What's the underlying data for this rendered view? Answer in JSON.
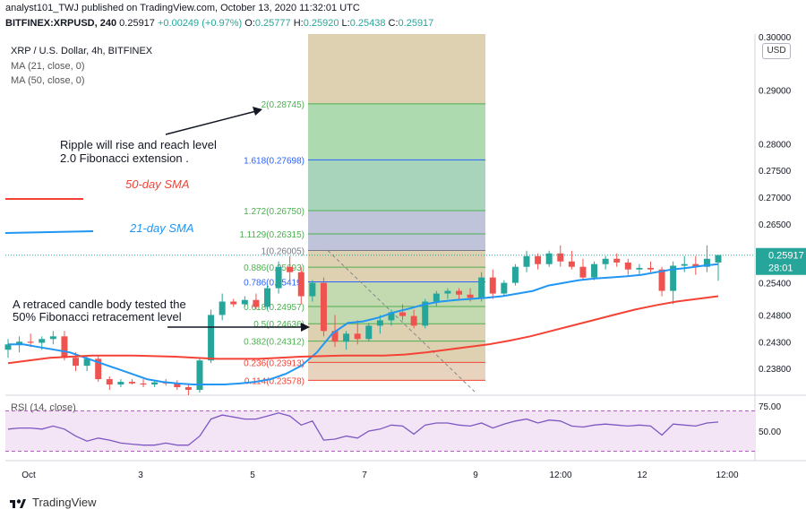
{
  "header": {
    "line1": "analyst101_TWJ published on TradingView.com, October 13, 2020 11:32:01 UTC",
    "symbol": "BITFINEX:XRPUSD, 240",
    "last": "0.25917",
    "change": "+0.00249 (+0.97%)",
    "o_label": "O:",
    "o": "0.25777",
    "h_label": "H:",
    "h": "0.25920",
    "l_label": "L:",
    "l": "0.25438",
    "c_label": "C:",
    "c": "0.25917"
  },
  "legend": {
    "title": "XRP / U.S. Dollar, 4h, BITFINEX",
    "ma21": "MA (21, close, 0)",
    "ma50": "MA (50, close, 0)"
  },
  "annotations": {
    "note1_line1": "Ripple will rise and reach level",
    "note1_line2": "2.0 Fibonacci extension .",
    "note2_line1": "A retraced candle body tested the",
    "note2_line2": "50% Fibonacci retracement level",
    "sma50": "50-day SMA",
    "sma21": "21-day SMA"
  },
  "price_scale": {
    "currency": "USD",
    "last_price": "0.25917",
    "countdown": "28:01"
  },
  "rsi": {
    "label": "RSI (14, close)",
    "ticks": [
      "75.00",
      "50.00"
    ]
  },
  "colors": {
    "up": "#26a69a",
    "down": "#ef5350",
    "ma21": "#2196f3",
    "ma50": "#f44336",
    "fib_green": "#4caf50",
    "fib_blue": "#2962ff",
    "rsi_line": "#7e57c2",
    "rsi_band": "#f3e5f5"
  },
  "brand": "TradingView",
  "chart_data": {
    "type": "candlestick",
    "title": "XRP / U.S. Dollar, 4h, BITFINEX",
    "y_ticks": [
      0.3,
      0.29,
      0.28,
      0.275,
      0.27,
      0.265,
      0.254,
      0.248,
      0.243,
      0.238
    ],
    "y_tick_labels": [
      "0.30000",
      "0.29000",
      "0.28000",
      "0.27500",
      "0.27000",
      "0.26500",
      "0.25400",
      "0.24800",
      "0.24300",
      "0.23800"
    ],
    "ylim": [
      0.2335,
      0.3005
    ],
    "x_tick_labels": [
      "Oct",
      "3",
      "5",
      "7",
      "9",
      "12:00",
      "12",
      "12:00"
    ],
    "fibonacci": [
      {
        "ratio": "2",
        "value": 0.28745,
        "label": "2(0.28745)",
        "color": "#4caf50"
      },
      {
        "ratio": "1.618",
        "value": 0.27698,
        "label": "1.618(0.27698)",
        "color": "#2962ff"
      },
      {
        "ratio": "1.272",
        "value": 0.2675,
        "label": "1.272(0.26750)",
        "color": "#4caf50"
      },
      {
        "ratio": "1.1129",
        "value": 0.26315,
        "label": "1.1129(0.26315)",
        "color": "#4caf50"
      },
      {
        "ratio": "1",
        "value": 0.26005,
        "label": "1(0.26005)",
        "color": "#787b86"
      },
      {
        "ratio": "0.886",
        "value": 0.25693,
        "label": "0.886(0.25693)",
        "color": "#4caf50"
      },
      {
        "ratio": "0.786",
        "value": 0.25419,
        "label": "0.786(0.25419)",
        "color": "#2962ff"
      },
      {
        "ratio": "0.618",
        "value": 0.24957,
        "label": "0.618(0.24957)",
        "color": "#4caf50"
      },
      {
        "ratio": "0.5",
        "value": 0.24636,
        "label": "0.5(0.24636)",
        "color": "#4caf50"
      },
      {
        "ratio": "0.382",
        "value": 0.24312,
        "label": "0.382(0.24312)",
        "color": "#4caf50"
      },
      {
        "ratio": "0.236",
        "value": 0.23913,
        "label": "0.236(0.23913)",
        "color": "#f44336"
      },
      {
        "ratio": "0.114",
        "value": 0.23578,
        "label": "0.114(0.23578)",
        "color": "#f44336"
      }
    ],
    "candles": [
      [
        0.2415,
        0.2435,
        0.24,
        0.2425
      ],
      [
        0.2425,
        0.244,
        0.241,
        0.243
      ],
      [
        0.243,
        0.2445,
        0.242,
        0.2428
      ],
      [
        0.2428,
        0.244,
        0.2415,
        0.2435
      ],
      [
        0.2435,
        0.245,
        0.2425,
        0.244
      ],
      [
        0.244,
        0.245,
        0.2395,
        0.24
      ],
      [
        0.24,
        0.241,
        0.2375,
        0.2385
      ],
      [
        0.2385,
        0.2405,
        0.2375,
        0.2398
      ],
      [
        0.2398,
        0.2405,
        0.2355,
        0.236
      ],
      [
        0.236,
        0.2365,
        0.234,
        0.235
      ],
      [
        0.235,
        0.236,
        0.2345,
        0.2355
      ],
      [
        0.2355,
        0.236,
        0.235,
        0.2352
      ],
      [
        0.2352,
        0.236,
        0.2345,
        0.235
      ],
      [
        0.235,
        0.2358,
        0.2345,
        0.2354
      ],
      [
        0.2354,
        0.236,
        0.2348,
        0.2352
      ],
      [
        0.2352,
        0.2358,
        0.234,
        0.2345
      ],
      [
        0.2345,
        0.235,
        0.233,
        0.234
      ],
      [
        0.234,
        0.24,
        0.2335,
        0.2395
      ],
      [
        0.2395,
        0.249,
        0.239,
        0.248
      ],
      [
        0.248,
        0.252,
        0.247,
        0.2505
      ],
      [
        0.2505,
        0.251,
        0.2495,
        0.25
      ],
      [
        0.25,
        0.2515,
        0.2495,
        0.2508
      ],
      [
        0.2508,
        0.252,
        0.249,
        0.2495
      ],
      [
        0.2495,
        0.2535,
        0.249,
        0.253
      ],
      [
        0.253,
        0.258,
        0.252,
        0.257
      ],
      [
        0.257,
        0.259,
        0.254,
        0.256
      ],
      [
        0.256,
        0.257,
        0.25,
        0.2515
      ],
      [
        0.2515,
        0.2545,
        0.2505,
        0.254
      ],
      [
        0.254,
        0.255,
        0.244,
        0.245
      ],
      [
        0.245,
        0.248,
        0.242,
        0.243
      ],
      [
        0.243,
        0.245,
        0.2415,
        0.2445
      ],
      [
        0.2445,
        0.247,
        0.2425,
        0.2435
      ],
      [
        0.2435,
        0.2465,
        0.243,
        0.246
      ],
      [
        0.246,
        0.248,
        0.2445,
        0.247
      ],
      [
        0.247,
        0.249,
        0.246,
        0.2485
      ],
      [
        0.2485,
        0.25,
        0.247,
        0.2478
      ],
      [
        0.2478,
        0.249,
        0.2455,
        0.246
      ],
      [
        0.246,
        0.251,
        0.2455,
        0.2505
      ],
      [
        0.2505,
        0.2525,
        0.2495,
        0.252
      ],
      [
        0.252,
        0.253,
        0.251,
        0.2525
      ],
      [
        0.2525,
        0.253,
        0.251,
        0.2518
      ],
      [
        0.2518,
        0.253,
        0.2505,
        0.2512
      ],
      [
        0.2512,
        0.256,
        0.2505,
        0.255
      ],
      [
        0.255,
        0.2565,
        0.251,
        0.252
      ],
      [
        0.252,
        0.2545,
        0.2515,
        0.254
      ],
      [
        0.254,
        0.2575,
        0.2535,
        0.257
      ],
      [
        0.257,
        0.26,
        0.256,
        0.259
      ],
      [
        0.259,
        0.2595,
        0.2565,
        0.2575
      ],
      [
        0.2575,
        0.26,
        0.257,
        0.2595
      ],
      [
        0.2595,
        0.261,
        0.257,
        0.258
      ],
      [
        0.258,
        0.26,
        0.2565,
        0.257
      ],
      [
        0.257,
        0.2585,
        0.2545,
        0.255
      ],
      [
        0.255,
        0.258,
        0.2545,
        0.2575
      ],
      [
        0.2575,
        0.259,
        0.2565,
        0.2585
      ],
      [
        0.2585,
        0.2595,
        0.257,
        0.2578
      ],
      [
        0.2578,
        0.2585,
        0.2555,
        0.2565
      ],
      [
        0.2565,
        0.2575,
        0.2555,
        0.2568
      ],
      [
        0.2568,
        0.258,
        0.256,
        0.2565
      ],
      [
        0.2565,
        0.257,
        0.2515,
        0.2525
      ],
      [
        0.2525,
        0.258,
        0.25,
        0.2572
      ],
      [
        0.2572,
        0.259,
        0.256,
        0.2575
      ],
      [
        0.2575,
        0.259,
        0.2555,
        0.257
      ],
      [
        0.257,
        0.261,
        0.256,
        0.2585
      ],
      [
        0.2578,
        0.2592,
        0.2544,
        0.2592
      ]
    ],
    "ma21": [
      0.2425,
      0.2425,
      0.242,
      0.2415,
      0.241,
      0.24,
      0.239,
      0.238,
      0.237,
      0.236,
      0.2355,
      0.2352,
      0.235,
      0.235,
      0.235,
      0.2352,
      0.2355,
      0.236,
      0.237,
      0.2385,
      0.241,
      0.2445,
      0.2465,
      0.2468,
      0.2475,
      0.2485,
      0.2492,
      0.25,
      0.2505,
      0.2508,
      0.251,
      0.2512,
      0.2515,
      0.252,
      0.2525,
      0.2535,
      0.254,
      0.2545,
      0.2548,
      0.255,
      0.2552,
      0.2555,
      0.256,
      0.2565,
      0.2568,
      0.2572,
      0.2575
    ],
    "ma50": [
      0.239,
      0.2395,
      0.24,
      0.2402,
      0.2404,
      0.2404,
      0.2404,
      0.2403,
      0.2402,
      0.24,
      0.2398,
      0.2398,
      0.2398,
      0.24,
      0.2402,
      0.2403,
      0.2404,
      0.2404,
      0.2404,
      0.2406,
      0.241,
      0.2415,
      0.242,
      0.2425,
      0.2432,
      0.244,
      0.245,
      0.246,
      0.247,
      0.248,
      0.249,
      0.2498,
      0.2505,
      0.251,
      0.2515
    ],
    "rsi": [
      52,
      53,
      53,
      52,
      55,
      52,
      45,
      40,
      43,
      41,
      38,
      37,
      36,
      36,
      38,
      36,
      36,
      45,
      62,
      66,
      64,
      62,
      62,
      65,
      68,
      65,
      56,
      60,
      41,
      42,
      45,
      43,
      50,
      52,
      56,
      55,
      47,
      56,
      58,
      58,
      56,
      55,
      58,
      53,
      57,
      60,
      62,
      58,
      61,
      60,
      55,
      54,
      56,
      57,
      56,
      55,
      56,
      55,
      46,
      57,
      56,
      55,
      58,
      59
    ]
  }
}
